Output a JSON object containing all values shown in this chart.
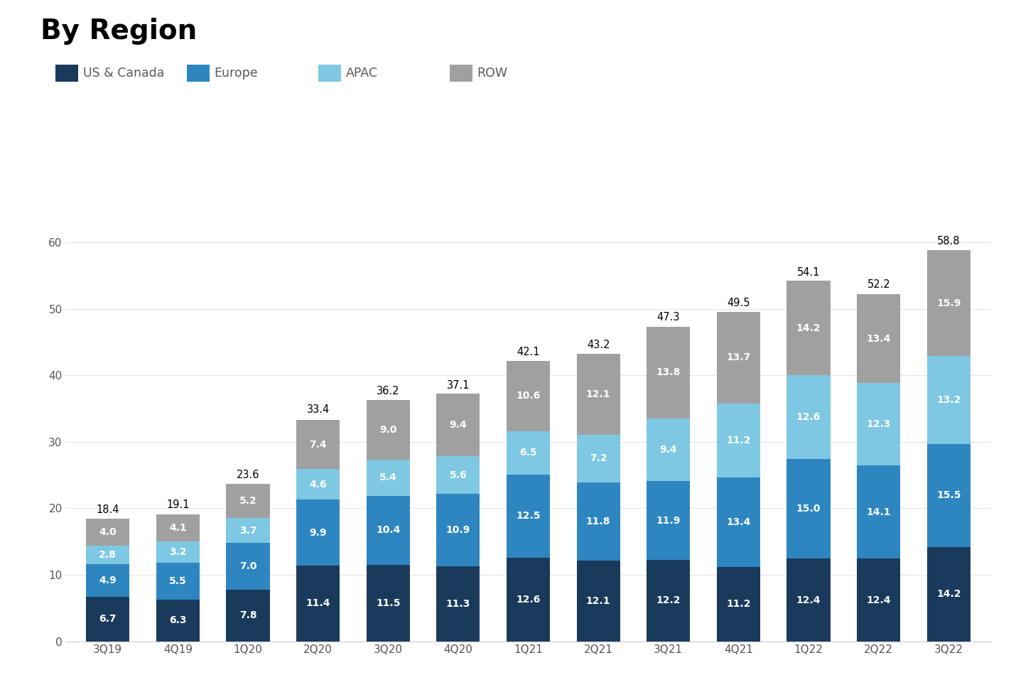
{
  "title": "By Region",
  "categories": [
    "3Q19",
    "4Q19",
    "1Q20",
    "2Q20",
    "3Q20",
    "4Q20",
    "1Q21",
    "2Q21",
    "3Q21",
    "4Q21",
    "1Q22",
    "2Q22",
    "3Q22"
  ],
  "series": {
    "US & Canada": [
      6.7,
      6.3,
      7.8,
      11.4,
      11.5,
      11.3,
      12.6,
      12.1,
      12.2,
      11.2,
      12.4,
      12.4,
      14.2
    ],
    "Europe": [
      4.9,
      5.5,
      7.0,
      9.9,
      10.4,
      10.9,
      12.5,
      11.8,
      11.9,
      13.4,
      15.0,
      14.1,
      15.5
    ],
    "APAC": [
      2.8,
      3.2,
      3.7,
      4.6,
      5.4,
      5.6,
      6.5,
      7.2,
      9.4,
      11.2,
      12.6,
      12.3,
      13.2
    ],
    "ROW": [
      4.0,
      4.1,
      5.2,
      7.4,
      9.0,
      9.4,
      10.6,
      12.1,
      13.8,
      13.7,
      14.2,
      13.4,
      15.9
    ]
  },
  "totals": [
    18.4,
    19.1,
    23.6,
    33.4,
    36.2,
    37.1,
    42.1,
    43.2,
    47.3,
    49.5,
    54.1,
    52.2,
    58.8
  ],
  "colors": {
    "US & Canada": "#1a3a5c",
    "Europe": "#2e86c1",
    "APAC": "#7ec8e3",
    "ROW": "#a0a0a0"
  },
  "legend_order": [
    "US & Canada",
    "Europe",
    "APAC",
    "ROW"
  ],
  "ylim": [
    0,
    65
  ],
  "yticks": [
    0,
    10,
    20,
    30,
    40,
    50,
    60
  ],
  "background_color": "#ffffff",
  "title_fontsize": 28,
  "label_fontsize": 10,
  "tick_fontsize": 11,
  "legend_fontsize": 12.5,
  "total_fontsize": 10.5,
  "bar_width": 0.62,
  "legend_text_color": "#595959"
}
